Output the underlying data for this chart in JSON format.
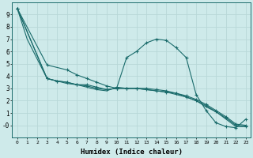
{
  "xlabel": "Humidex (Indice chaleur)",
  "bg_color": "#ceeaea",
  "line_color": "#1a6b6b",
  "grid_color": "#b8d8d8",
  "xlim": [
    -0.5,
    23.5
  ],
  "ylim": [
    -1.0,
    10.0
  ],
  "yticks": [
    0,
    1,
    2,
    3,
    4,
    5,
    6,
    7,
    8,
    9
  ],
  "ytick_labels": [
    "-0",
    "1",
    "2",
    "3",
    "4",
    "5",
    "6",
    "7",
    "8",
    "9"
  ],
  "xticks": [
    0,
    1,
    2,
    3,
    4,
    5,
    6,
    7,
    8,
    9,
    10,
    11,
    12,
    13,
    14,
    15,
    16,
    17,
    18,
    19,
    20,
    21,
    22,
    23
  ],
  "series": [
    {
      "x": [
        0,
        1,
        3,
        4,
        5,
        6,
        7,
        8,
        9,
        10,
        11,
        12,
        13,
        14,
        15,
        16,
        17,
        18,
        19,
        20,
        21,
        22,
        23
      ],
      "y": [
        9.5,
        7.0,
        3.8,
        3.6,
        3.4,
        3.3,
        3.1,
        2.9,
        2.8,
        3.1,
        3.0,
        3.0,
        2.9,
        2.8,
        2.7,
        2.5,
        2.3,
        2.0,
        1.5,
        1.1,
        0.5,
        -0.1,
        -0.1
      ],
      "has_markers": false
    },
    {
      "x": [
        0,
        3,
        5,
        6,
        7,
        8,
        9,
        10,
        11,
        12,
        13,
        14,
        15,
        16,
        17,
        18,
        19,
        20,
        21,
        22,
        23
      ],
      "y": [
        9.5,
        4.9,
        4.5,
        4.1,
        3.8,
        3.5,
        3.2,
        3.0,
        5.5,
        6.0,
        6.7,
        7.0,
        6.9,
        6.3,
        5.5,
        2.5,
        1.2,
        0.2,
        -0.1,
        -0.2,
        0.5
      ],
      "has_markers": true
    },
    {
      "x": [
        0,
        3,
        4,
        5,
        6,
        7,
        8,
        9,
        10,
        11,
        12,
        13,
        14,
        15,
        16,
        17,
        18,
        19,
        20,
        21,
        22,
        23
      ],
      "y": [
        9.5,
        3.8,
        3.6,
        3.5,
        3.3,
        3.3,
        3.1,
        2.9,
        3.0,
        3.0,
        3.0,
        2.9,
        2.8,
        2.7,
        2.6,
        2.4,
        2.1,
        1.7,
        1.2,
        0.7,
        0.1,
        0.0
      ],
      "has_markers": true
    },
    {
      "x": [
        0,
        3,
        4,
        5,
        6,
        7,
        8,
        9,
        10,
        11,
        12,
        13,
        14,
        15,
        16,
        17,
        18,
        19,
        20,
        21,
        22,
        23
      ],
      "y": [
        9.5,
        3.8,
        3.6,
        3.5,
        3.3,
        3.2,
        3.0,
        2.9,
        3.0,
        3.0,
        3.0,
        3.0,
        2.9,
        2.8,
        2.6,
        2.3,
        2.0,
        1.6,
        1.1,
        0.6,
        0.0,
        -0.1
      ],
      "has_markers": true
    }
  ]
}
